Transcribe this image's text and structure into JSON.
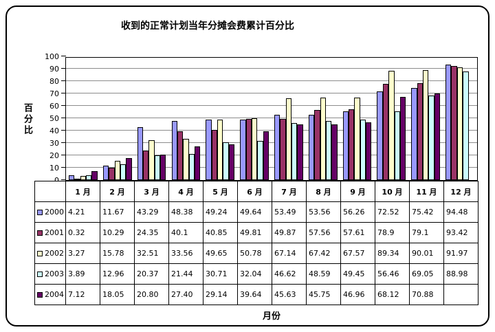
{
  "chart_data": {
    "type": "bar",
    "title": "收到的正常计划当年分摊会费累计百分比",
    "xlabel": "月份",
    "ylabel": "百分比",
    "ylim": [
      0,
      100
    ],
    "ytick_step": 10,
    "grid": true,
    "legend_position": "data-table-left",
    "categories": [
      "1 月",
      "2 月",
      "3 月",
      "4 月",
      "5 月",
      "6 月",
      "7 月",
      "8 月",
      "9 月",
      "10 月",
      "11 月",
      "12 月"
    ],
    "series": [
      {
        "name": "2000",
        "color": "#9999FF",
        "values": [
          4.21,
          11.67,
          43.29,
          48.38,
          49.24,
          49.64,
          53.49,
          53.56,
          56.26,
          72.52,
          75.42,
          94.48
        ],
        "display": [
          "4.21",
          "11.67",
          "43.29",
          "48.38",
          "49.24",
          "49.64",
          "53.49",
          "53.56",
          "56.26",
          "72.52",
          "75.42",
          "94.48"
        ]
      },
      {
        "name": "2001",
        "color": "#993366",
        "values": [
          0.32,
          10.29,
          24.35,
          40.1,
          40.85,
          49.81,
          49.87,
          57.56,
          57.61,
          78.9,
          79.1,
          93.42
        ],
        "display": [
          "0.32",
          "10.29",
          "24.35",
          "40.1",
          "40.85",
          "49.81",
          "49.87",
          "57.56",
          "57.61",
          "78.9",
          "79.1",
          "93.42"
        ]
      },
      {
        "name": "2002",
        "color": "#FFFFCC",
        "values": [
          3.27,
          15.78,
          32.51,
          33.56,
          49.65,
          50.78,
          67.14,
          67.42,
          67.57,
          89.34,
          90.01,
          91.97
        ],
        "display": [
          "3.27",
          "15.78",
          "32.51",
          "33.56",
          "49.65",
          "50.78",
          "67.14",
          "67.42",
          "67.57",
          "89.34",
          "90.01",
          "91.97"
        ]
      },
      {
        "name": "2003",
        "color": "#CCFFFF",
        "values": [
          3.89,
          12.96,
          20.37,
          21.44,
          30.71,
          32.04,
          46.62,
          48.59,
          49.45,
          56.46,
          69.05,
          88.98
        ],
        "display": [
          "3.89",
          "12.96",
          "20.37",
          "21.44",
          "30.71",
          "32.04",
          "46.62",
          "48.59",
          "49.45",
          "56.46",
          "69.05",
          "88.98"
        ]
      },
      {
        "name": "2004",
        "color": "#660066",
        "values": [
          7.12,
          18.05,
          20.8,
          27.4,
          29.14,
          39.64,
          45.63,
          45.75,
          46.96,
          68.12,
          70.88,
          null
        ],
        "display": [
          "7.12",
          "18.05",
          "20.80",
          "27.40",
          "29.14",
          "39.64",
          "45.63",
          "45.75",
          "46.96",
          "68.12",
          "70.88",
          ""
        ]
      }
    ]
  }
}
